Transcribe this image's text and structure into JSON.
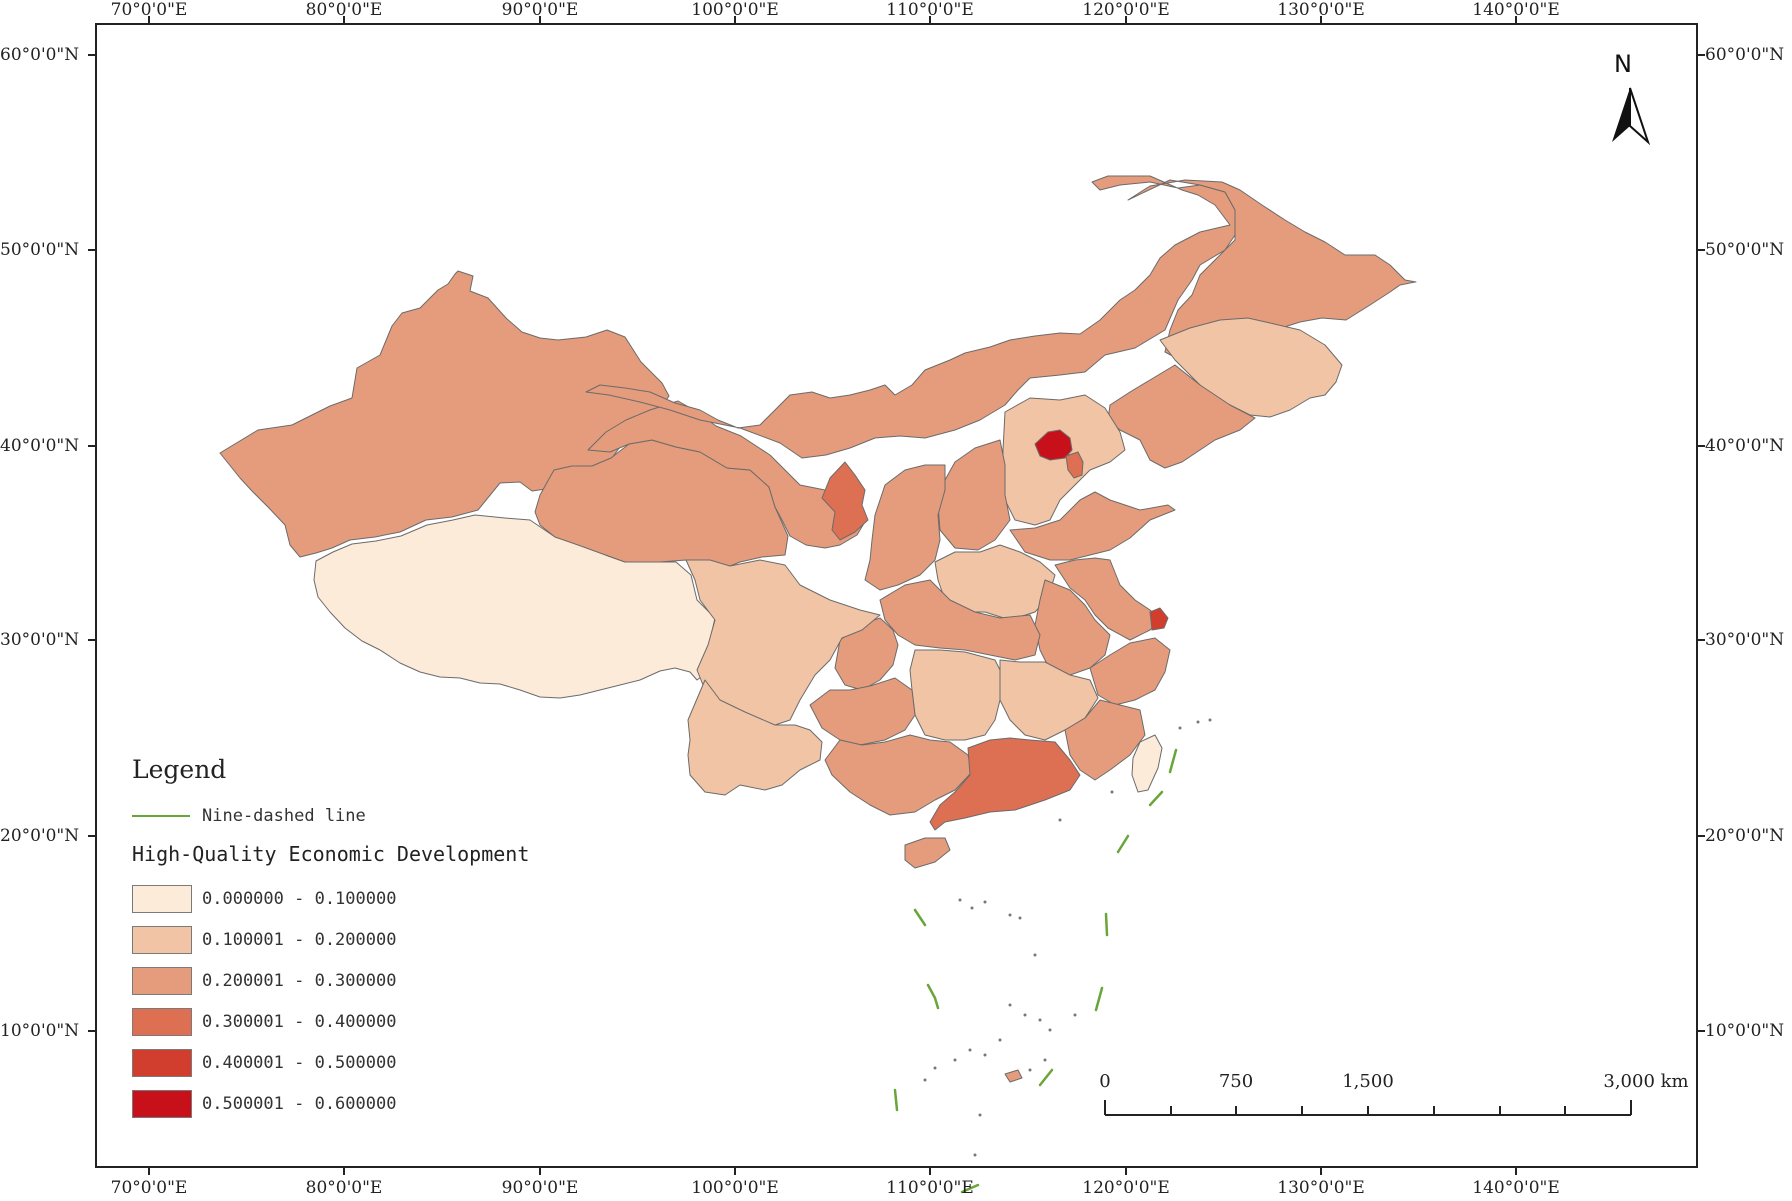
{
  "longitude_labels": [
    "70°0'0\"E",
    "80°0'0\"E",
    "90°0'0\"E",
    "100°0'0\"E",
    "110°0'0\"E",
    "120°0'0\"E",
    "130°0'0\"E",
    "140°0'0\"E"
  ],
  "latitude_labels": [
    "60°0'0\"N",
    "50°0'0\"N",
    "40°0'0\"N",
    "30°0'0\"N",
    "20°0'0\"N",
    "10°0'0\"N"
  ],
  "north_arrow": {
    "letter": "N",
    "icon": "north-arrow-icon"
  },
  "legend": {
    "title": "Legend",
    "nine_dashed_line": {
      "label": "Nine-dashed line",
      "color": "#6aa53a"
    },
    "indicator_title": "High-Quality Economic Development",
    "classes": [
      {
        "label": "0.000000 - 0.100000",
        "color": "#fdebd9"
      },
      {
        "label": "0.100001 - 0.200000",
        "color": "#f0c4a4"
      },
      {
        "label": "0.200001 - 0.300000",
        "color": "#e49c7c"
      },
      {
        "label": "0.300001 - 0.400000",
        "color": "#dd6f52"
      },
      {
        "label": "0.400001 - 0.500000",
        "color": "#d23e2e"
      },
      {
        "label": "0.500001 - 0.600000",
        "color": "#c8101a"
      }
    ]
  },
  "scale_bar": {
    "labels": [
      "0",
      "750",
      "1,500",
      "3,000 km"
    ]
  }
}
